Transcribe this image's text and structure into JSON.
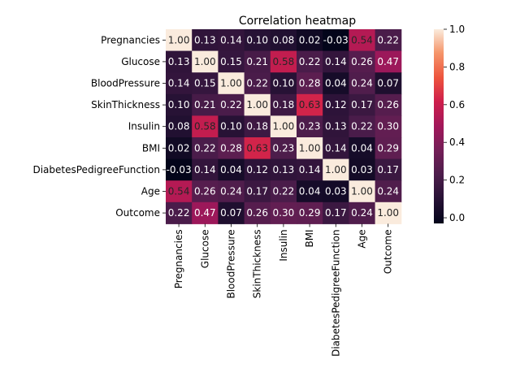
{
  "chart_data": {
    "type": "heatmap",
    "title": "Correlation heatmap",
    "xlabel": "",
    "ylabel": "",
    "rows": [
      "Pregnancies",
      "Glucose",
      "BloodPressure",
      "SkinThickness",
      "Insulin",
      "BMI",
      "DiabetesPedigreeFunction",
      "Age",
      "Outcome"
    ],
    "columns": [
      "Pregnancies",
      "Glucose",
      "BloodPressure",
      "SkinThickness",
      "Insulin",
      "BMI",
      "DiabetesPedigreeFunction",
      "Age",
      "Outcome"
    ],
    "values": [
      [
        1.0,
        0.13,
        0.14,
        0.1,
        0.08,
        0.02,
        -0.03,
        0.54,
        0.22
      ],
      [
        0.13,
        1.0,
        0.15,
        0.21,
        0.58,
        0.22,
        0.14,
        0.26,
        0.47
      ],
      [
        0.14,
        0.15,
        1.0,
        0.22,
        0.1,
        0.28,
        0.04,
        0.24,
        0.07
      ],
      [
        0.1,
        0.21,
        0.22,
        1.0,
        0.18,
        0.63,
        0.12,
        0.17,
        0.26
      ],
      [
        0.08,
        0.58,
        0.1,
        0.18,
        1.0,
        0.23,
        0.13,
        0.22,
        0.3
      ],
      [
        0.02,
        0.22,
        0.28,
        0.63,
        0.23,
        1.0,
        0.14,
        0.04,
        0.29
      ],
      [
        -0.03,
        0.14,
        0.04,
        0.12,
        0.13,
        0.14,
        1.0,
        0.03,
        0.17
      ],
      [
        0.54,
        0.26,
        0.24,
        0.17,
        0.22,
        0.04,
        0.03,
        1.0,
        0.24
      ],
      [
        0.22,
        0.47,
        0.07,
        0.26,
        0.3,
        0.29,
        0.17,
        0.24,
        1.0
      ]
    ],
    "value_format": "0.00",
    "colormap": "rocket",
    "vmin": -0.03,
    "vmax": 1.0,
    "colorbar": {
      "ticks": [
        0.0,
        0.2,
        0.4,
        0.6,
        0.8,
        1.0
      ],
      "tick_labels": [
        "0.0",
        "0.2",
        "0.4",
        "0.6",
        "0.8",
        "1.0"
      ],
      "placement": "right"
    }
  }
}
